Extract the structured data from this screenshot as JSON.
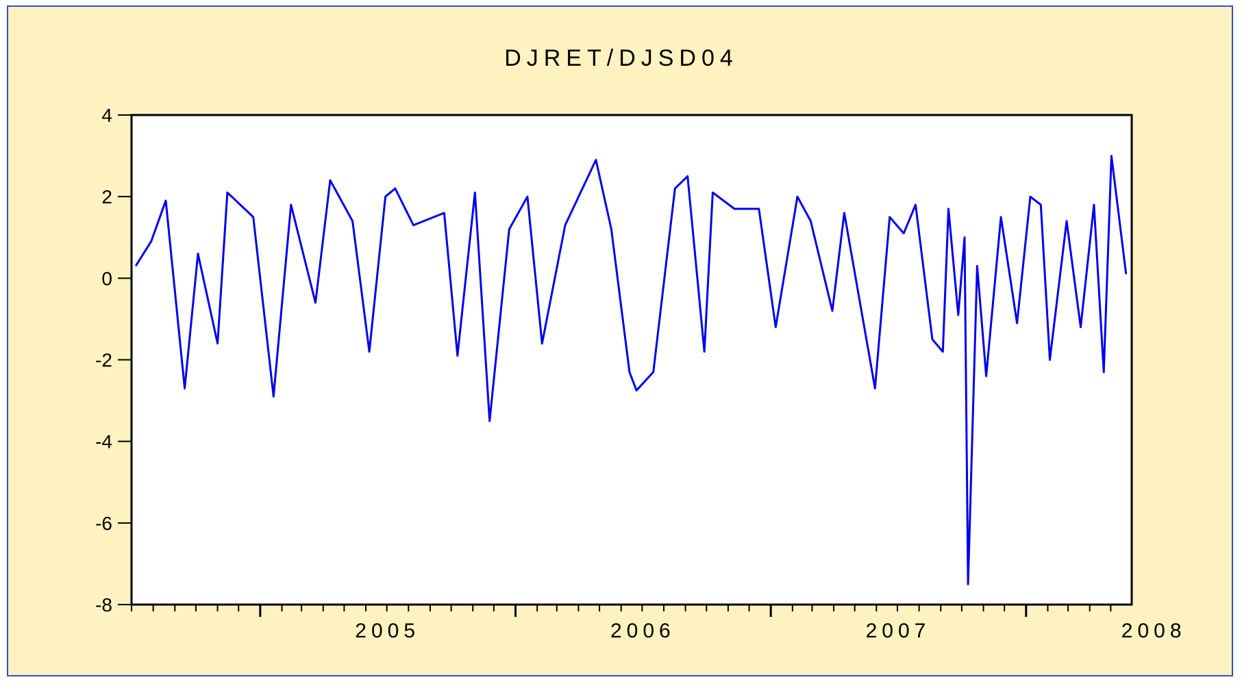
{
  "chart_data": {
    "type": "line",
    "title": "DJRET/DJSD04",
    "xlabel": "",
    "ylabel": "",
    "ylim": [
      -8,
      4
    ],
    "yticks": [
      4,
      2,
      0,
      -2,
      -4,
      -6,
      -8
    ],
    "ytick_labels": [
      "4",
      "2",
      "0",
      "-2",
      "-4",
      "-6",
      "-8"
    ],
    "xlim": [
      "2004-07-01",
      "2008-05-31"
    ],
    "x_year_labels": [
      "2005",
      "2006",
      "2007",
      "2008"
    ],
    "grid": false,
    "legend": "none",
    "line_color": "#0000ee",
    "background_color": "#fdf2c0",
    "plot_background": "#ffffff",
    "series": [
      {
        "points": [
          [
            "2004-07-07",
            0.3
          ],
          [
            "2004-07-29",
            0.9
          ],
          [
            "2004-08-19",
            1.9
          ],
          [
            "2004-09-15",
            -2.7
          ],
          [
            "2004-10-04",
            0.6
          ],
          [
            "2004-11-01",
            -1.6
          ],
          [
            "2004-11-15",
            2.1
          ],
          [
            "2004-12-22",
            1.5
          ],
          [
            "2005-01-20",
            -2.9
          ],
          [
            "2005-02-14",
            1.8
          ],
          [
            "2005-03-21",
            -0.6
          ],
          [
            "2005-04-11",
            2.4
          ],
          [
            "2005-05-13",
            1.4
          ],
          [
            "2005-06-06",
            -1.8
          ],
          [
            "2005-06-29",
            2.0
          ],
          [
            "2005-07-13",
            2.2
          ],
          [
            "2005-08-08",
            1.3
          ],
          [
            "2005-09-21",
            1.6
          ],
          [
            "2005-10-10",
            -1.9
          ],
          [
            "2005-11-04",
            2.1
          ],
          [
            "2005-11-25",
            -3.5
          ],
          [
            "2005-12-23",
            1.2
          ],
          [
            "2006-01-18",
            2.0
          ],
          [
            "2006-02-08",
            -1.6
          ],
          [
            "2006-03-13",
            1.3
          ],
          [
            "2006-04-26",
            2.9
          ],
          [
            "2006-05-18",
            1.2
          ],
          [
            "2006-06-13",
            -2.3
          ],
          [
            "2006-06-23",
            -2.75
          ],
          [
            "2006-07-17",
            -2.3
          ],
          [
            "2006-08-17",
            2.2
          ],
          [
            "2006-09-04",
            2.5
          ],
          [
            "2006-09-28",
            -1.8
          ],
          [
            "2006-10-10",
            2.1
          ],
          [
            "2006-11-10",
            1.7
          ],
          [
            "2006-12-15",
            1.7
          ],
          [
            "2007-01-08",
            -1.2
          ],
          [
            "2007-02-08",
            2.0
          ],
          [
            "2007-02-27",
            1.4
          ],
          [
            "2007-03-30",
            -0.8
          ],
          [
            "2007-04-16",
            1.6
          ],
          [
            "2007-05-30",
            -2.7
          ],
          [
            "2007-06-20",
            1.5
          ],
          [
            "2007-07-10",
            1.1
          ],
          [
            "2007-07-27",
            1.8
          ],
          [
            "2007-08-20",
            -1.5
          ],
          [
            "2007-09-04",
            -1.8
          ],
          [
            "2007-09-12",
            1.7
          ],
          [
            "2007-09-26",
            -0.9
          ],
          [
            "2007-10-05",
            1.0
          ],
          [
            "2007-10-10",
            -7.5
          ],
          [
            "2007-10-23",
            0.3
          ],
          [
            "2007-11-05",
            -2.4
          ],
          [
            "2007-11-26",
            1.5
          ],
          [
            "2007-12-19",
            -1.1
          ],
          [
            "2008-01-07",
            2.0
          ],
          [
            "2008-01-22",
            1.8
          ],
          [
            "2008-02-04",
            -2.0
          ],
          [
            "2008-02-28",
            1.4
          ],
          [
            "2008-03-19",
            -1.2
          ],
          [
            "2008-04-07",
            1.8
          ],
          [
            "2008-04-21",
            -2.3
          ],
          [
            "2008-05-02",
            3.0
          ],
          [
            "2008-05-23",
            0.1
          ]
        ]
      }
    ]
  }
}
